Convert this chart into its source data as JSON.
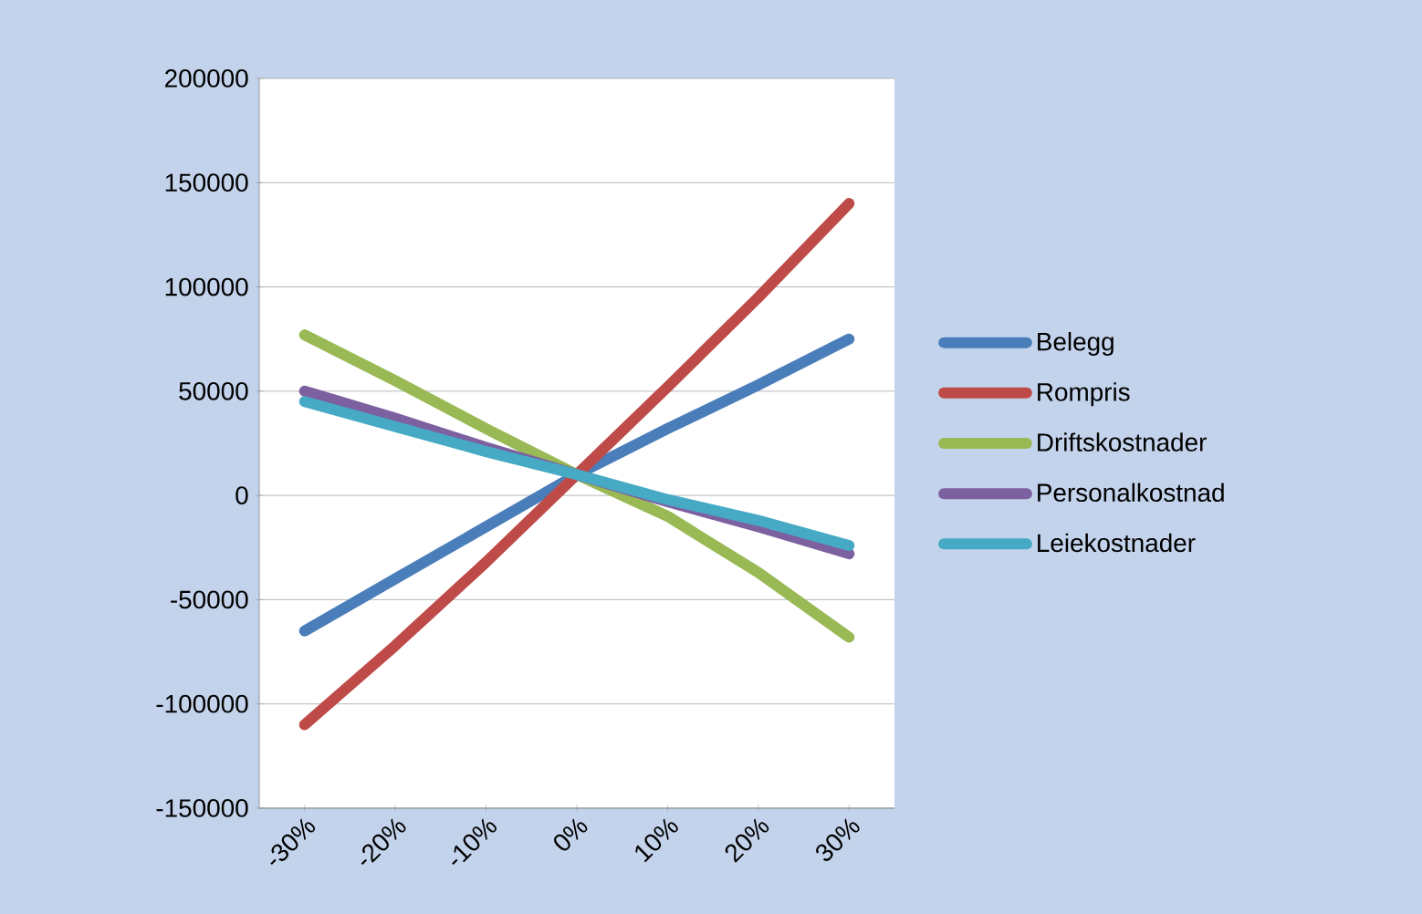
{
  "chart_data": {
    "type": "line",
    "categories": [
      "-30%",
      "-20%",
      "-10%",
      "0%",
      "10%",
      "20%",
      "30%"
    ],
    "series": [
      {
        "name": "Belegg",
        "color": "#4a7ebb",
        "values": [
          -65000,
          -40000,
          -15000,
          10000,
          32000,
          53000,
          75000
        ]
      },
      {
        "name": "Rompris",
        "color": "#be4b48",
        "values": [
          -110000,
          -72000,
          -32000,
          10000,
          52000,
          95000,
          140000
        ]
      },
      {
        "name": "Driftskostnader",
        "color": "#98b954",
        "values": [
          77000,
          55000,
          32000,
          10000,
          -10000,
          -37000,
          -68000
        ]
      },
      {
        "name": "Personalkostnad",
        "color": "#7d60a0",
        "values": [
          50000,
          37000,
          23000,
          10000,
          -3000,
          -15000,
          -28000
        ]
      },
      {
        "name": "Leiekostnader",
        "color": "#46aac5",
        "values": [
          45000,
          33000,
          21000,
          10000,
          -2000,
          -12000,
          -24000
        ]
      }
    ],
    "ylim": [
      -150000,
      200000
    ],
    "yticks": [
      -150000,
      -100000,
      -50000,
      0,
      50000,
      100000,
      150000,
      200000
    ],
    "grid": "y",
    "legend": "right"
  }
}
